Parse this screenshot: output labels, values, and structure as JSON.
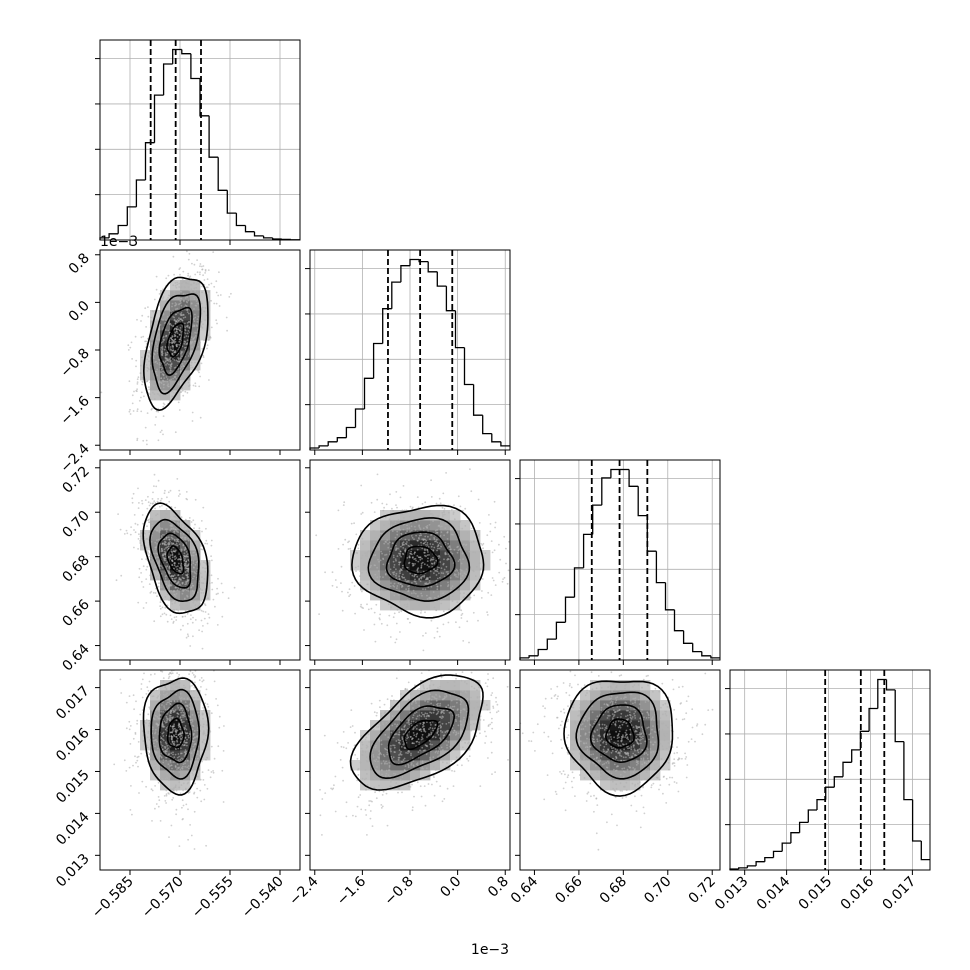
{
  "chart_data": {
    "type": "corner",
    "parameters": [
      {
        "label": "",
        "range": [
          -0.594,
          -0.534
        ],
        "ticks": [
          -0.585,
          -0.57,
          -0.555,
          -0.54
        ],
        "tick_labels": [
          "−0.585",
          "−0.570",
          "−0.555",
          "−0.540"
        ],
        "offset_text": "",
        "quantiles": [
          -0.5788,
          -0.5713,
          -0.5637
        ],
        "mean": -0.5713,
        "sd": 0.0048
      },
      {
        "label": "",
        "range": [
          -2.48,
          0.88
        ],
        "ticks": [
          -2.4,
          -1.6,
          -0.8,
          0.0,
          0.8
        ],
        "tick_labels": [
          "−2.4",
          "−1.6",
          "−0.8",
          "0.0",
          "0.8"
        ],
        "offset_text": "1e−3",
        "quantiles": [
          -1.17,
          -0.63,
          -0.09
        ],
        "mean": -0.63,
        "sd": 0.55
      },
      {
        "label": "",
        "range": [
          0.6335,
          0.7235
        ],
        "ticks": [
          0.64,
          0.66,
          0.68,
          0.7,
          0.72
        ],
        "tick_labels": [
          "0.64",
          "0.66",
          "0.68",
          "0.70",
          "0.72"
        ],
        "offset_text": "",
        "quantiles": [
          0.6658,
          0.6783,
          0.6908
        ],
        "mean": 0.6785,
        "sd": 0.0122
      },
      {
        "label": "",
        "range": [
          0.01265,
          0.01742
        ],
        "ticks": [
          0.013,
          0.014,
          0.015,
          0.016,
          0.017
        ],
        "tick_labels": [
          "0.013",
          "0.014",
          "0.015",
          "0.016",
          "0.017"
        ],
        "offset_text": "",
        "quantiles": [
          0.01492,
          0.01577,
          0.01633
        ],
        "mean": 0.0159,
        "sd": 0.00068
      }
    ],
    "histograms": [
      {
        "param": 0,
        "values": [
          1,
          3,
          7,
          16,
          29,
          47,
          70,
          85,
          92,
          90,
          78,
          60,
          40,
          24,
          13,
          7,
          4,
          2,
          1,
          0.5,
          0.3,
          0.1
        ]
      },
      {
        "param": 1,
        "values": [
          1,
          2,
          4,
          6,
          11,
          20,
          35,
          52,
          69,
          82,
          90,
          93,
          92,
          87,
          80,
          68,
          50,
          32,
          17,
          8,
          4,
          2
        ]
      },
      {
        "param": 2,
        "values": [
          1,
          2,
          5,
          10,
          18,
          30,
          44,
          60,
          74,
          87,
          91,
          91,
          83,
          69,
          52,
          37,
          24,
          14,
          8,
          4,
          2,
          1
        ]
      },
      {
        "param": 3,
        "values": [
          0.5,
          1,
          2,
          4,
          6,
          9,
          13,
          18,
          23,
          29,
          34,
          40,
          45,
          52,
          58,
          67,
          78,
          92,
          87,
          62,
          34,
          14,
          5
        ]
      }
    ],
    "correlations": [
      {
        "row": 1,
        "col": 0,
        "rho": 0.45
      },
      {
        "row": 2,
        "col": 0,
        "rho": -0.4
      },
      {
        "row": 2,
        "col": 1,
        "rho": 0.0
      },
      {
        "row": 3,
        "col": 0,
        "rho": 0.0
      },
      {
        "row": 3,
        "col": 1,
        "rho": 0.55
      },
      {
        "row": 3,
        "col": 2,
        "rho": 0.0
      }
    ],
    "contour_sigma_levels": [
      0.5,
      1.0,
      1.5,
      2.0
    ],
    "show_grid": true,
    "show_quantile_lines": true
  }
}
